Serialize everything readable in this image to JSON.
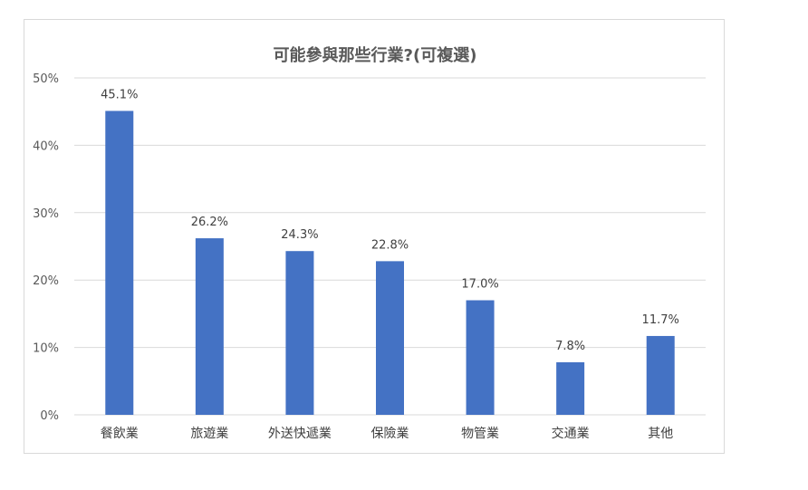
{
  "chart_data": {
    "type": "bar",
    "title": "可能參與那些行業?(可複選)",
    "categories": [
      "餐飲業",
      "旅遊業",
      "外送快遞業",
      "保險業",
      "物管業",
      "交通業",
      "其他"
    ],
    "values": [
      45.1,
      26.2,
      24.3,
      22.8,
      17.0,
      7.8,
      11.7
    ],
    "data_labels": [
      "45.1%",
      "26.2%",
      "24.3%",
      "22.8%",
      "17.0%",
      "7.8%",
      "11.7%"
    ],
    "y_ticks": [
      "0%",
      "10%",
      "20%",
      "30%",
      "40%",
      "50%"
    ],
    "ylim": [
      0,
      50
    ],
    "grid": true,
    "legend": "none",
    "bar_color": "#4472c4",
    "gridline_color": "#d9d9d9"
  }
}
